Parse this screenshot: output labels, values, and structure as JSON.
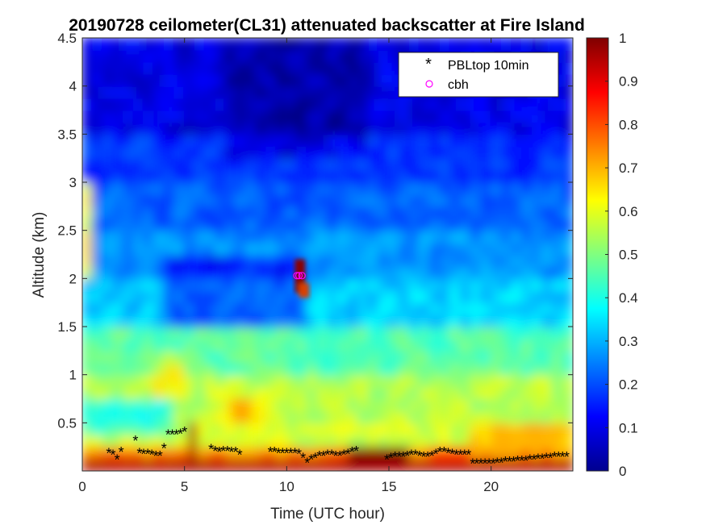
{
  "chart_data": {
    "type": "heatmap",
    "title": "20190728 ceilometer(CL31) attenuated backscatter at Fire Island",
    "xlabel": "Time (UTC hour)",
    "ylabel": "Altitude (km)",
    "xlim": [
      0,
      24
    ],
    "ylim": [
      0,
      4.5
    ],
    "xticks": [
      "0",
      "5",
      "10",
      "15",
      "20"
    ],
    "yticks": [
      "0.5",
      "1",
      "1.5",
      "2",
      "2.5",
      "3",
      "3.5",
      "4",
      "4.5"
    ],
    "colorbar": {
      "range": [
        0,
        1
      ],
      "ticks": [
        "0",
        "0.1",
        "0.2",
        "0.3",
        "0.4",
        "0.5",
        "0.6",
        "0.7",
        "0.8",
        "0.9",
        "1"
      ],
      "colormap": "jet"
    },
    "legend": {
      "location": "top-right",
      "entries": [
        {
          "label": "PBLtop 10min",
          "marker": "*",
          "color": "#000000"
        },
        {
          "label": "cbh",
          "marker": "o",
          "color": "#ff00ff"
        }
      ]
    },
    "series": [
      {
        "name": "PBLtop 10min",
        "x": [
          1.3,
          1.5,
          1.7,
          1.9,
          2.6,
          2.8,
          3.0,
          3.2,
          3.4,
          3.6,
          3.8,
          4.0,
          4.2,
          4.4,
          4.6,
          4.8,
          5.0,
          6.3,
          6.5,
          6.7,
          6.9,
          7.1,
          7.3,
          7.5,
          7.7,
          9.2,
          9.4,
          9.6,
          9.8,
          10.0,
          10.2,
          10.4,
          10.6,
          10.8,
          11.0,
          11.2,
          11.4,
          11.6,
          11.8,
          12.0,
          12.2,
          12.4,
          12.6,
          12.8,
          13.0,
          13.2,
          13.4,
          14.9,
          15.1,
          15.3,
          15.5,
          15.7,
          15.9,
          16.1,
          16.3,
          16.5,
          16.7,
          16.9,
          17.1,
          17.3,
          17.5,
          17.7,
          17.9,
          18.1,
          18.3,
          18.5,
          18.7,
          18.9,
          19.1,
          19.3,
          19.5,
          19.7,
          19.9,
          20.1,
          20.3,
          20.5,
          20.7,
          20.9,
          21.1,
          21.3,
          21.5,
          21.7,
          21.9,
          22.1,
          22.3,
          22.5,
          22.7,
          22.9,
          23.1,
          23.3,
          23.5,
          23.7
        ],
        "y": [
          0.19,
          0.17,
          0.12,
          0.2,
          0.32,
          0.19,
          0.18,
          0.18,
          0.17,
          0.16,
          0.16,
          0.24,
          0.38,
          0.38,
          0.38,
          0.39,
          0.41,
          0.23,
          0.21,
          0.2,
          0.21,
          0.21,
          0.2,
          0.2,
          0.17,
          0.2,
          0.2,
          0.19,
          0.19,
          0.19,
          0.19,
          0.19,
          0.18,
          0.14,
          0.09,
          0.12,
          0.14,
          0.16,
          0.16,
          0.17,
          0.17,
          0.16,
          0.16,
          0.17,
          0.18,
          0.2,
          0.21,
          0.12,
          0.14,
          0.15,
          0.15,
          0.15,
          0.16,
          0.17,
          0.17,
          0.16,
          0.15,
          0.15,
          0.16,
          0.18,
          0.2,
          0.2,
          0.19,
          0.18,
          0.17,
          0.17,
          0.17,
          0.17,
          0.08,
          0.08,
          0.08,
          0.08,
          0.08,
          0.08,
          0.09,
          0.09,
          0.1,
          0.1,
          0.1,
          0.11,
          0.11,
          0.11,
          0.12,
          0.12,
          0.13,
          0.13,
          0.14,
          0.14,
          0.15,
          0.15,
          0.15,
          0.15
        ]
      },
      {
        "name": "cbh",
        "x": [
          10.5,
          10.6,
          10.75
        ],
        "y": [
          2.03,
          2.03,
          2.03
        ]
      }
    ]
  }
}
